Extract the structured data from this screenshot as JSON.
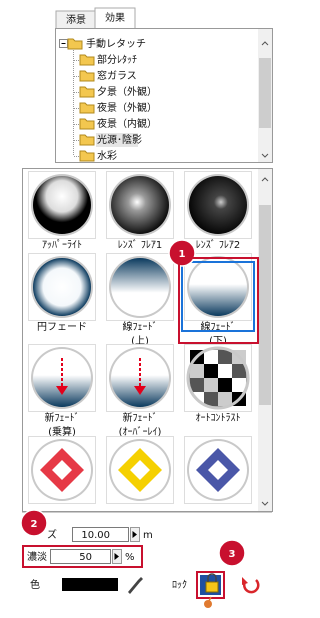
{
  "tabs": [
    "添景",
    "効果"
  ],
  "tree": {
    "root": "手動レタッチ",
    "items": [
      "部分ﾚﾀｯﾁ",
      "窓ガラス",
      "夕景（外観）",
      "夜景（外観）",
      "夜景（内観）",
      "光源･陰影",
      "水彩"
    ]
  },
  "gallery": [
    {
      "lines": [
        "ｱｯﾊﾟｰﾗｲﾄ"
      ]
    },
    {
      "lines": [
        "ﾚﾝｽﾞ ﾌﾚｱ1"
      ]
    },
    {
      "lines": [
        "ﾚﾝｽﾞ ﾌﾚｱ2"
      ]
    },
    {
      "lines": [
        "円フェード"
      ]
    },
    {
      "lines": [
        "線ﾌｪｰﾄﾞ",
        "(上)"
      ]
    },
    {
      "lines": [
        "線ﾌｪｰﾄﾞ",
        "(下)"
      ]
    },
    {
      "lines": [
        "新ﾌｪｰﾄﾞ",
        "(乗算)"
      ]
    },
    {
      "lines": [
        "新ﾌｪｰﾄﾞ",
        "(ｵｰﾊﾞｰﾚｲ)"
      ]
    },
    {
      "lines": [
        "ｵｰﾄｺﾝﾄﾗｽﾄ"
      ]
    }
  ],
  "callouts": [
    "1",
    "2",
    "3"
  ],
  "size": {
    "label": "ズ",
    "value": "10.00",
    "unit": "m"
  },
  "density": {
    "label": "濃淡",
    "value": "50",
    "unit": "%"
  },
  "color": {
    "label": "色"
  },
  "lock": {
    "label": "ﾛｯｸ"
  }
}
